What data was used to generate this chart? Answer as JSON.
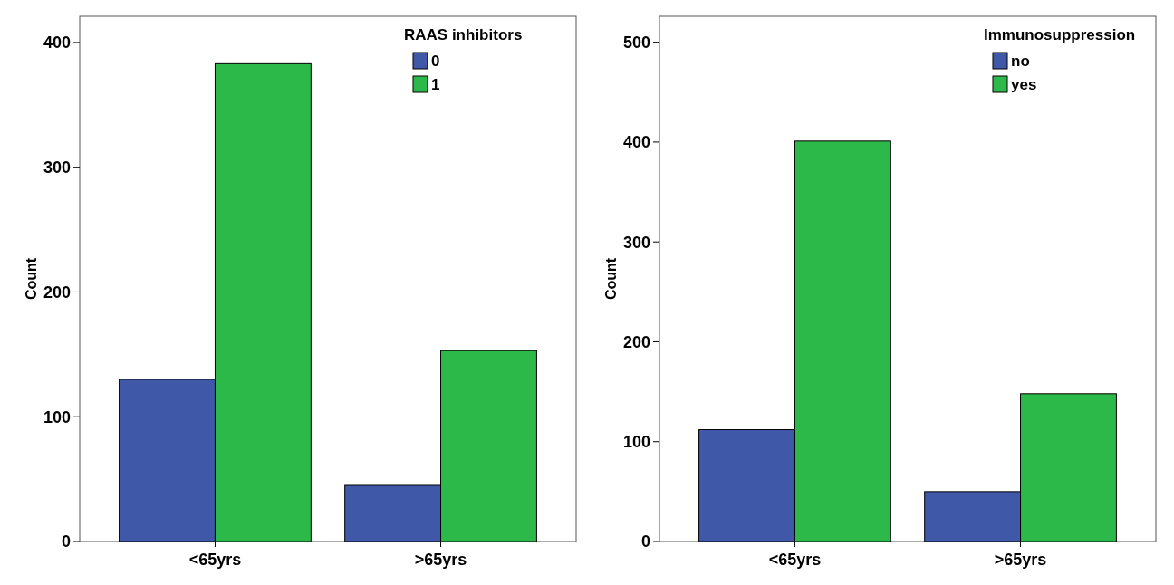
{
  "chart_data": [
    {
      "type": "bar",
      "categories": [
        "<65yrs",
        ">65yrs"
      ],
      "ylabel": "Count",
      "legend_title": "RAAS inhibitors",
      "legend": "top right",
      "ylim": [
        0,
        421
      ],
      "yticks": [
        0,
        100,
        200,
        300,
        400
      ],
      "series": [
        {
          "name": "0",
          "color": "#3f58a8",
          "values": [
            130,
            45
          ]
        },
        {
          "name": "1",
          "color": "#2db84a",
          "values": [
            383,
            153
          ]
        }
      ]
    },
    {
      "type": "bar",
      "categories": [
        "<65yrs",
        ">65yrs"
      ],
      "ylabel": "Count",
      "legend_title": "Immunosuppression",
      "legend": "top right",
      "ylim": [
        0,
        526
      ],
      "yticks": [
        0,
        100,
        200,
        300,
        400,
        500
      ],
      "series": [
        {
          "name": "no",
          "color": "#3f58a8",
          "values": [
            112,
            50
          ]
        },
        {
          "name": "yes",
          "color": "#2db84a",
          "values": [
            401,
            148
          ]
        }
      ]
    }
  ]
}
